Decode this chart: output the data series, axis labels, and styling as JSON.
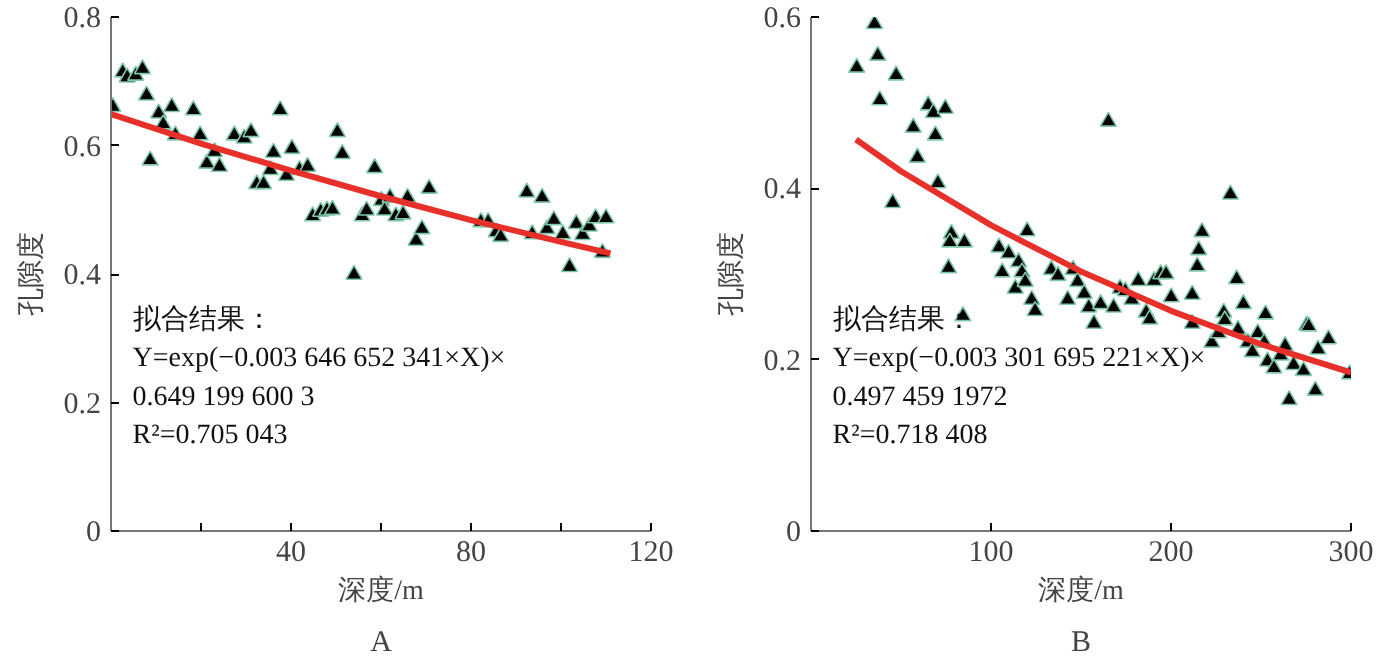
{
  "chart_data": [
    {
      "type": "scatter",
      "title": "A",
      "xlabel": "深度/m",
      "ylabel": "孔隙度",
      "annotations": [
        "拟合结果：",
        "Y=exp(−0.003 646 652 341×X)×",
        "0.649 199 600 3",
        "R²=0.705 043"
      ],
      "xlim": [
        0,
        120
      ],
      "ylim": [
        0,
        0.8
      ],
      "xticks": [
        {
          "value": 20,
          "label": null
        },
        40,
        {
          "value": 60,
          "label": null
        },
        80,
        {
          "value": 100,
          "label": null
        },
        120
      ],
      "yticks": [
        0,
        0.2,
        0.4,
        0.6,
        0.8
      ],
      "grid": false,
      "series": [
        {
          "marker": "triangle",
          "color": "#000000",
          "x": [
            0.4,
            2.6,
            3.6,
            5.5,
            7.0,
            7.9,
            8.7,
            10.6,
            11.6,
            13.5,
            14.3,
            18.3,
            19.8,
            21.3,
            23.0,
            24.1,
            27.4,
            29.6,
            31.1,
            32.4,
            33.9,
            35.4,
            36.1,
            37.6,
            39.0,
            40.2,
            41.9,
            43.7,
            44.8,
            46.6,
            48.0,
            49.2,
            50.3,
            51.4,
            54.0,
            55.8,
            56.8,
            58.6,
            60.1,
            60.8,
            62.0,
            63.3,
            64.9,
            65.9,
            67.8,
            69.1,
            70.7,
            82.2,
            83.8,
            85.6,
            86.6,
            92.4,
            93.6,
            95.8,
            96.9,
            98.4,
            100.4,
            101.9,
            103.4,
            104.8,
            106.3,
            107.7,
            109.2,
            110.0
          ],
          "values": [
            0.66,
            0.714,
            0.706,
            0.709,
            0.719,
            0.678,
            0.577,
            0.65,
            0.633,
            0.66,
            0.616,
            0.655,
            0.616,
            0.572,
            0.59,
            0.567,
            0.616,
            0.611,
            0.621,
            0.54,
            0.54,
            0.562,
            0.589,
            0.655,
            0.553,
            0.595,
            0.562,
            0.567,
            0.49,
            0.497,
            0.499,
            0.5,
            0.621,
            0.587,
            0.399,
            0.49,
            0.499,
            0.565,
            0.514,
            0.499,
            0.519,
            0.49,
            0.493,
            0.519,
            0.452,
            0.47,
            0.533,
            0.481,
            0.481,
            0.465,
            0.458,
            0.527,
            0.462,
            0.519,
            0.47,
            0.484,
            0.462,
            0.411,
            0.478,
            0.461,
            0.474,
            0.487,
            0.433,
            0.487
          ]
        },
        {
          "type": "line",
          "color": "#e8302a",
          "x": [
            0,
            20,
            40,
            60,
            80,
            100,
            111
          ],
          "values": [
            0.649,
            0.603,
            0.561,
            0.521,
            0.484,
            0.45,
            0.432
          ]
        }
      ]
    },
    {
      "type": "scatter",
      "title": "B",
      "xlabel": "深度/m",
      "ylabel": "孔隙度",
      "annotations": [
        "拟合结果：",
        "Y=exp(−0.003 301 695 221×X)×",
        "0.497 459 1972",
        "R²=0.718 408"
      ],
      "xlim": [
        0,
        300
      ],
      "ylim": [
        0,
        0.6
      ],
      "xticks": [
        100,
        200,
        300
      ],
      "yticks": [
        0,
        0.2,
        0.4,
        0.6
      ],
      "grid": false,
      "series": [
        {
          "marker": "triangle",
          "color": "#000000",
          "x": [
            25.4,
            35.3,
            37.1,
            38.2,
            47.3,
            45.4,
            56.8,
            59.1,
            65.1,
            68.0,
            69.1,
            70.5,
            74.6,
            78.0,
            77.1,
            76.4,
            84.4,
            85.2,
            104.4,
            109.8,
            106.2,
            115.3,
            113.5,
            120.1,
            117.2,
            119.0,
            122.6,
            124.5,
            133.5,
            137.2,
            142.6,
            145.6,
            148.1,
            151.8,
            154.3,
            160.9,
            165.2,
            168.1,
            171.7,
            174.6,
            178.2,
            181.8,
            186.2,
            190.6,
            194.3,
            197.2,
            200.1,
            211.8,
            214.6,
            215.4,
            217.2,
            233.0,
            236.5,
            240.2,
            229.3,
            252.5,
            275.4,
            157.2,
            188.1,
            211.8,
            222.7,
            226.3,
            229.9,
            237.2,
            242.7,
            245.2,
            248.2,
            251.8,
            253.6,
            257.2,
            260.9,
            263.4,
            265.6,
            268.1,
            273.6,
            276.5,
            280.2,
            281.7,
            287.5,
            299.2
          ],
          "values": [
            0.541,
            0.592,
            0.555,
            0.503,
            0.532,
            0.383,
            0.471,
            0.436,
            0.497,
            0.488,
            0.462,
            0.406,
            0.493,
            0.347,
            0.337,
            0.307,
            0.251,
            0.337,
            0.331,
            0.324,
            0.302,
            0.314,
            0.283,
            0.35,
            0.302,
            0.291,
            0.27,
            0.257,
            0.305,
            0.298,
            0.27,
            0.305,
            0.291,
            0.277,
            0.261,
            0.265,
            0.478,
            0.261,
            0.283,
            0.28,
            0.27,
            0.292,
            0.255,
            0.292,
            0.3,
            0.3,
            0.273,
            0.276,
            0.309,
            0.328,
            0.349,
            0.393,
            0.294,
            0.265,
            0.255,
            0.253,
            0.24,
            0.242,
            0.247,
            0.242,
            0.22,
            0.231,
            0.246,
            0.235,
            0.22,
            0.209,
            0.231,
            0.22,
            0.198,
            0.19,
            0.205,
            0.216,
            0.153,
            0.194,
            0.187,
            0.239,
            0.164,
            0.212,
            0.224,
            0.183
          ]
        },
        {
          "type": "line",
          "color": "#e8302a",
          "x": [
            25,
            50,
            100,
            150,
            200,
            250,
            300
          ],
          "values": [
            0.457,
            0.42,
            0.357,
            0.303,
            0.257,
            0.218,
            0.185
          ]
        }
      ]
    }
  ]
}
